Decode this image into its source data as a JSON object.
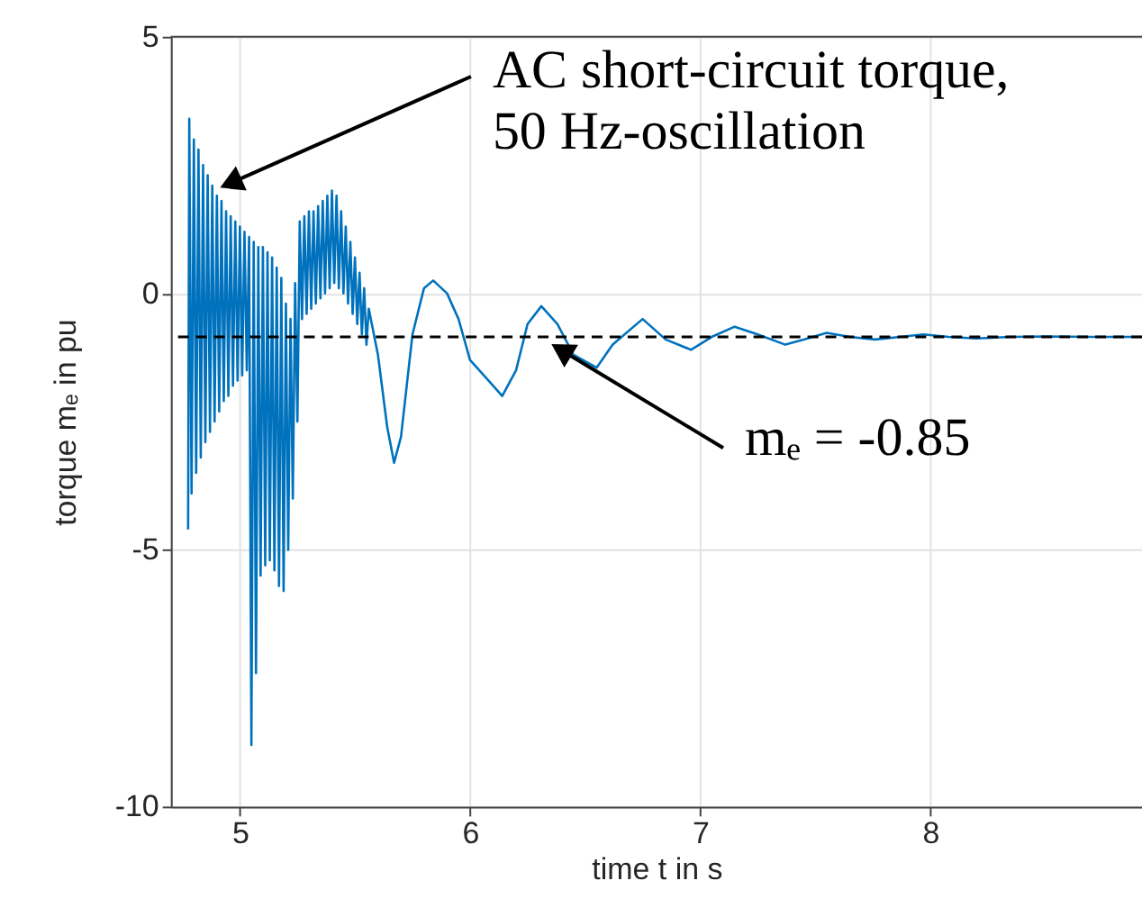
{
  "chart_data": {
    "type": "line",
    "xlabel": "time t in s",
    "ylabel": "torque mₑ in pu",
    "xlim": [
      4.7,
      8.92
    ],
    "ylim": [
      -10,
      5
    ],
    "xticks": [
      5,
      6,
      7,
      8
    ],
    "yticks": [
      -10,
      -5,
      0,
      5
    ],
    "grid": true,
    "x": [
      4.775,
      4.78,
      4.79,
      4.8,
      4.81,
      4.82,
      4.83,
      4.84,
      4.85,
      4.86,
      4.87,
      4.88,
      4.89,
      4.9,
      4.91,
      4.92,
      4.93,
      4.94,
      4.95,
      4.96,
      4.97,
      4.98,
      4.99,
      5.0,
      5.01,
      5.02,
      5.03,
      5.04,
      5.05,
      5.06,
      5.07,
      5.08,
      5.09,
      5.1,
      5.11,
      5.12,
      5.13,
      5.14,
      5.15,
      5.16,
      5.17,
      5.18,
      5.19,
      5.2,
      5.21,
      5.22,
      5.23,
      5.24,
      5.25,
      5.26,
      5.27,
      5.28,
      5.29,
      5.3,
      5.31,
      5.32,
      5.33,
      5.34,
      5.35,
      5.36,
      5.37,
      5.38,
      5.39,
      5.4,
      5.41,
      5.42,
      5.43,
      5.44,
      5.45,
      5.46,
      5.47,
      5.48,
      5.49,
      5.5,
      5.51,
      5.52,
      5.53,
      5.54,
      5.55,
      5.56,
      5.6,
      5.64,
      5.67,
      5.7,
      5.75,
      5.8,
      5.84,
      5.9,
      5.95,
      6.0,
      6.08,
      6.14,
      6.2,
      6.25,
      6.31,
      6.38,
      6.45,
      6.55,
      6.62,
      6.75,
      6.85,
      6.96,
      7.05,
      7.15,
      7.25,
      7.37,
      7.45,
      7.55,
      7.65,
      7.76,
      7.87,
      7.97,
      8.08,
      8.2,
      8.35,
      8.5,
      8.7,
      8.92
    ],
    "series": [
      {
        "color": "#0072bd",
        "values": [
          -4.6,
          3.4,
          -3.9,
          3.0,
          -3.5,
          2.8,
          -3.2,
          2.5,
          -2.9,
          2.3,
          -2.7,
          2.1,
          -2.5,
          1.9,
          -2.3,
          1.8,
          -2.1,
          1.6,
          -2.0,
          1.5,
          -1.8,
          1.4,
          -1.7,
          1.3,
          -1.6,
          1.2,
          -1.5,
          1.1,
          -8.8,
          1.0,
          -7.4,
          0.9,
          -5.5,
          0.9,
          -5.3,
          0.8,
          -5.2,
          0.7,
          -5.4,
          0.5,
          -5.7,
          0.3,
          -5.8,
          -0.2,
          -5.0,
          -0.5,
          -4.0,
          0.2,
          -2.5,
          1.4,
          -0.5,
          1.5,
          -0.4,
          1.6,
          -0.3,
          1.6,
          -0.2,
          1.7,
          -0.1,
          1.8,
          0.0,
          1.9,
          0.1,
          2.0,
          0.2,
          1.9,
          0.1,
          1.6,
          0.0,
          1.3,
          -0.2,
          1.0,
          -0.4,
          0.7,
          -0.6,
          0.4,
          -0.8,
          0.1,
          -1.0,
          -0.3,
          -1.2,
          -2.6,
          -3.3,
          -2.8,
          -0.8,
          0.1,
          0.25,
          0.0,
          -0.5,
          -1.3,
          -1.7,
          -2.0,
          -1.5,
          -0.6,
          -0.25,
          -0.6,
          -1.2,
          -1.45,
          -1.0,
          -0.5,
          -0.9,
          -1.1,
          -0.85,
          -0.65,
          -0.8,
          -1.0,
          -0.9,
          -0.77,
          -0.85,
          -0.9,
          -0.85,
          -0.8,
          -0.85,
          -0.88,
          -0.85,
          -0.84,
          -0.85,
          -0.85
        ]
      }
    ],
    "ref_lines": [
      {
        "axis": "y",
        "value": -0.85,
        "color": "#000000",
        "line_style": "dashed"
      }
    ],
    "annotations": [
      {
        "text": "AC short-circuit torque,\n50 Hz-oscillation",
        "x": 4.91,
        "y": 2.05
      },
      {
        "text": "mₑ = -0.85",
        "x": 6.35,
        "y": -0.98
      }
    ]
  }
}
